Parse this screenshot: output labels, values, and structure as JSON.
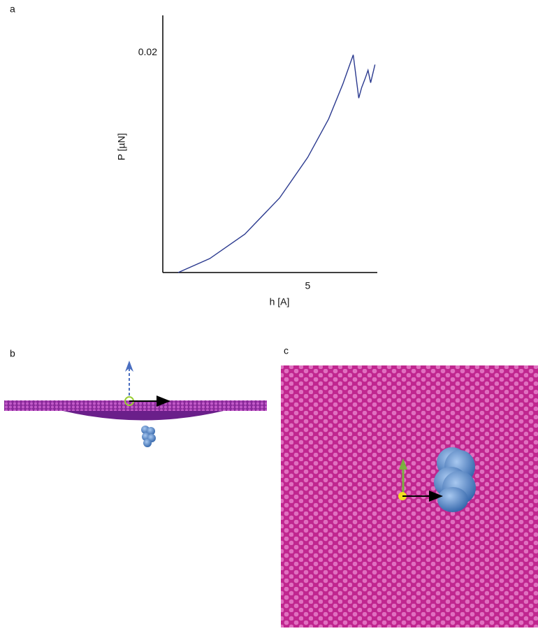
{
  "panel_labels": [
    "a",
    "b",
    "c"
  ],
  "chart_data": {
    "type": "line",
    "x_label": "h [A]",
    "y_label": "P [µN]",
    "x": [
      0.53,
      1.62,
      2.83,
      4.03,
      5.0,
      5.72,
      6.21,
      6.57,
      6.76,
      6.86,
      6.98,
      7.08,
      7.17,
      7.32
    ],
    "values": [
      0,
      0.00127,
      0.00349,
      0.00679,
      0.01048,
      0.01397,
      0.01714,
      0.01981,
      0.01587,
      0.01683,
      0.01765,
      0.01841,
      0.01727,
      0.01892
    ],
    "color": "#2b3a8f",
    "xlim": [
      0,
      7.4
    ],
    "ylim": [
      0,
      0.0234
    ],
    "xticks": [
      5
    ],
    "yticks": [
      0.02
    ],
    "grid": false
  }
}
